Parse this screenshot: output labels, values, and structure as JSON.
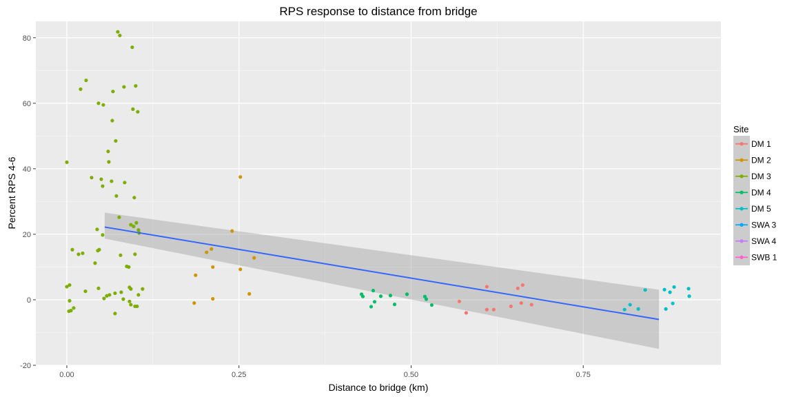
{
  "chart_data": {
    "type": "scatter",
    "title": "RPS response to distance from bridge",
    "xlabel": "Distance to bridge (km)",
    "ylabel": "Percent RPS 4-6",
    "xlim": [
      -0.045,
      0.95
    ],
    "ylim": [
      -20,
      85
    ],
    "x_ticks": [
      0.0,
      0.25,
      0.5,
      0.75
    ],
    "x_tick_labels": [
      "0.00",
      "0.25",
      "0.50",
      "0.75"
    ],
    "y_ticks": [
      -20,
      0,
      20,
      40,
      60,
      80
    ],
    "y_tick_labels": [
      "-20",
      "0",
      "20",
      "40",
      "60",
      "80"
    ],
    "grid": true,
    "legend": {
      "title": "Site",
      "placement": "right",
      "entries": [
        "DM 1",
        "DM 2",
        "DM 3",
        "DM 4",
        "DM 5",
        "SWA 3",
        "SWA 4",
        "SWB 1"
      ]
    },
    "series": [
      {
        "name": "DM 1",
        "color": "#F8766D",
        "points": [
          [
            0.57,
            -0.5
          ],
          [
            0.58,
            -4
          ],
          [
            0.61,
            4
          ],
          [
            0.61,
            -3
          ],
          [
            0.62,
            -3
          ],
          [
            0.645,
            -2
          ],
          [
            0.655,
            3.5
          ],
          [
            0.66,
            -1
          ],
          [
            0.662,
            4.5
          ],
          [
            0.675,
            -1.5
          ]
        ]
      },
      {
        "name": "DM 2",
        "color": "#CD9600",
        "points": [
          [
            0.185,
            -1
          ],
          [
            0.187,
            7.5
          ],
          [
            0.203,
            14.5
          ],
          [
            0.21,
            15.5
          ],
          [
            0.212,
            10
          ],
          [
            0.212,
            0.3
          ],
          [
            0.24,
            21
          ],
          [
            0.252,
            37.5
          ],
          [
            0.252,
            9.3
          ],
          [
            0.265,
            1.8
          ],
          [
            0.272,
            12.8
          ]
        ]
      },
      {
        "name": "DM 3",
        "color": "#7CAE00",
        "points": [
          [
            0.0,
            4
          ],
          [
            0.0,
            42
          ],
          [
            0.003,
            -3.5
          ],
          [
            0.004,
            4.5
          ],
          [
            0.004,
            -0.3
          ],
          [
            0.006,
            -3.3
          ],
          [
            0.008,
            15.3
          ],
          [
            0.01,
            -2.5
          ],
          [
            0.017,
            13.9
          ],
          [
            0.02,
            64.3
          ],
          [
            0.023,
            14.2
          ],
          [
            0.027,
            2.6
          ],
          [
            0.028,
            67
          ],
          [
            0.036,
            37.3
          ],
          [
            0.041,
            11.2
          ],
          [
            0.044,
            21.5
          ],
          [
            0.045,
            15
          ],
          [
            0.046,
            3.5
          ],
          [
            0.046,
            60
          ],
          [
            0.047,
            15.3
          ],
          [
            0.05,
            36.8
          ],
          [
            0.052,
            34.7
          ],
          [
            0.052,
            19.8
          ],
          [
            0.053,
            59.5
          ],
          [
            0.054,
            0.4
          ],
          [
            0.058,
            1.2
          ],
          [
            0.06,
            45.3
          ],
          [
            0.061,
            42.1
          ],
          [
            0.062,
            1.5
          ],
          [
            0.065,
            36.2
          ],
          [
            0.066,
            54.7
          ],
          [
            0.067,
            63.6
          ],
          [
            0.07,
            -4.2
          ],
          [
            0.07,
            2
          ],
          [
            0.071,
            48.5
          ],
          [
            0.072,
            31.7
          ],
          [
            0.074,
            81.8
          ],
          [
            0.076,
            25.2
          ],
          [
            0.077,
            80.7
          ],
          [
            0.078,
            13.6
          ],
          [
            0.079,
            2.3
          ],
          [
            0.082,
            0.2
          ],
          [
            0.083,
            65
          ],
          [
            0.084,
            35.8
          ],
          [
            0.087,
            10.2
          ],
          [
            0.09,
            10
          ],
          [
            0.091,
            3.8
          ],
          [
            0.091,
            -0.5
          ],
          [
            0.093,
            22.9
          ],
          [
            0.093,
            3.3
          ],
          [
            0.093,
            -1.5
          ],
          [
            0.095,
            77.1
          ],
          [
            0.096,
            58.2
          ],
          [
            0.097,
            22.4
          ],
          [
            0.098,
            31.2
          ],
          [
            0.099,
            -2
          ],
          [
            0.099,
            13.9
          ],
          [
            0.1,
            65.3
          ],
          [
            0.101,
            23.5
          ],
          [
            0.102,
            -2
          ],
          [
            0.103,
            57.4
          ],
          [
            0.104,
            21.3
          ],
          [
            0.104,
            1.5
          ],
          [
            0.105,
            20.4
          ],
          [
            0.11,
            3.3
          ]
        ]
      },
      {
        "name": "DM 4",
        "color": "#00BE67",
        "points": [
          [
            0.428,
            1.7
          ],
          [
            0.43,
            1
          ],
          [
            0.442,
            -2.1
          ],
          [
            0.445,
            2.8
          ],
          [
            0.447,
            -0.6
          ],
          [
            0.456,
            1.1
          ],
          [
            0.47,
            1.3
          ],
          [
            0.476,
            -1.4
          ],
          [
            0.494,
            1.7
          ],
          [
            0.52,
            1
          ],
          [
            0.522,
            0.2
          ],
          [
            0.53,
            -1.6
          ]
        ]
      },
      {
        "name": "DM 5",
        "color": "#00BFC4",
        "points": [
          [
            0.81,
            -3
          ],
          [
            0.818,
            -1.5
          ],
          [
            0.83,
            -2.8
          ],
          [
            0.84,
            3
          ],
          [
            0.868,
            3.1
          ],
          [
            0.87,
            -2.8
          ],
          [
            0.876,
            2.3
          ],
          [
            0.88,
            -1.1
          ],
          [
            0.882,
            3.9
          ],
          [
            0.903,
            3.4
          ],
          [
            0.904,
            1.1
          ]
        ]
      },
      {
        "name": "SWA 3",
        "color": "#00A9FF",
        "points": []
      },
      {
        "name": "SWA 4",
        "color": "#C77CFF",
        "points": []
      },
      {
        "name": "SWB 1",
        "color": "#FF61CC",
        "points": []
      }
    ],
    "trend": {
      "color": "#3366FF",
      "band_color": "#999999",
      "x": [
        0.055,
        0.86
      ],
      "y": [
        22.2,
        -6
      ],
      "band_lower": [
        18.7,
        -15
      ],
      "band_upper": [
        26.6,
        3.1
      ]
    }
  }
}
